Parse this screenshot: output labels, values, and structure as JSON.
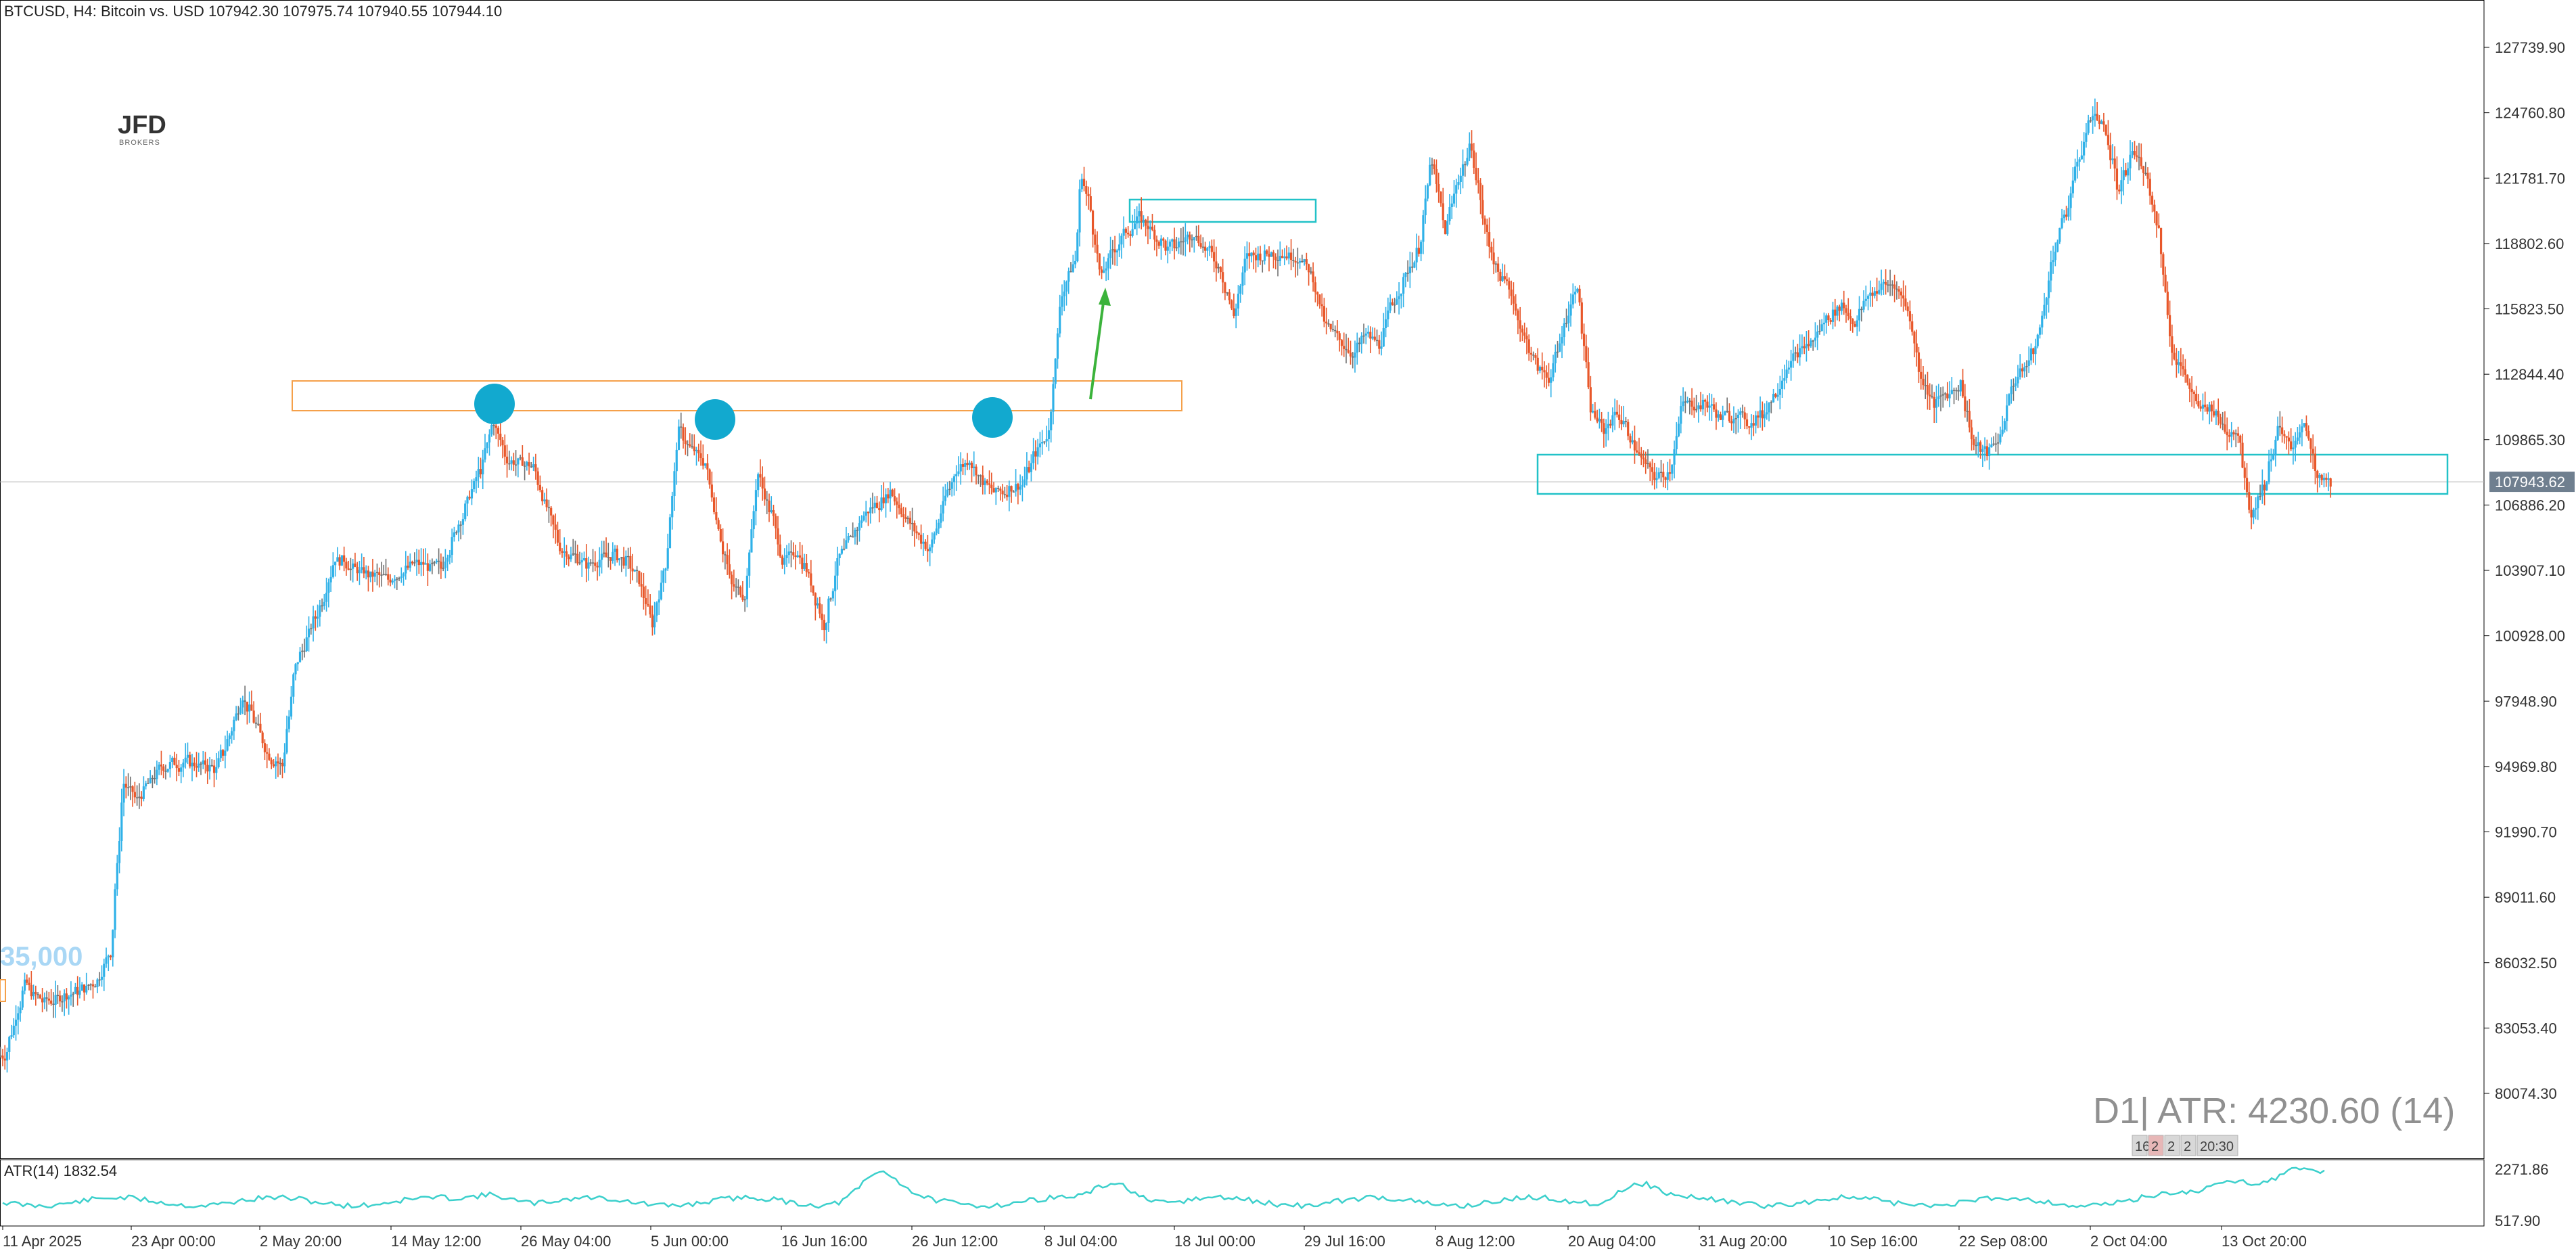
{
  "header": {
    "symbol": "BTCUSD",
    "timeframe": "H4",
    "description": "Bitcoin vs. USD",
    "ohlc": "107942.30 107975.74 107940.55 107944.10",
    "text": "BTCUSD, H4:  Bitcoin vs. USD  107942.30 107975.74 107940.55 107944.10"
  },
  "logo": {
    "main": "JFD",
    "sub": "BROKERS"
  },
  "overlay_label": "35,000",
  "atr_box": {
    "text": "D1| ATR: 4230.60 (14)",
    "mini_tabs": [
      "16",
      "2",
      "2",
      "2",
      "20:30"
    ]
  },
  "indicator": {
    "label": "ATR(14) 1832.54",
    "y_ticks": [
      "2271.86",
      "517.90"
    ]
  },
  "colors": {
    "bull": "#2fb1e8",
    "bear": "#e8572a",
    "doji": "#707070",
    "resistance_zone": "#f5a04a",
    "support_zone": "#22c2c8",
    "marker": "#12a9cf",
    "arrow": "#3bb33b",
    "atr_line": "#3cd0cc",
    "axis_text": "#333333",
    "price_badge": "#6f7f8f",
    "grid": "#d9d9d9"
  },
  "chart_data": {
    "type": "candlestick",
    "title": "BTCUSD, H4: Bitcoin vs. USD",
    "ylim": [
      77000,
      130000
    ],
    "y_ticks": [
      127739.9,
      124760.8,
      121781.7,
      118802.6,
      115823.5,
      112844.4,
      109865.3,
      106886.2,
      103907.1,
      100928.0,
      97948.9,
      94969.8,
      91990.7,
      89011.6,
      86032.5,
      83053.4,
      80074.3
    ],
    "y_tick_labels": [
      "127739.90",
      "124760.80",
      "121781.70",
      "118802.60",
      "115823.50",
      "112844.40",
      "109865.30",
      "106886.20",
      "103907.10",
      "100928.00",
      "97948.90",
      "94969.80",
      "91990.70",
      "89011.60",
      "86032.50",
      "83053.40",
      "80074.30"
    ],
    "x_tick_labels": [
      "11 Apr 2025",
      "23 Apr 00:00",
      "2 May 20:00",
      "14 May 12:00",
      "26 May 04:00",
      "5 Jun 00:00",
      "16 Jun 16:00",
      "26 Jun 12:00",
      "8 Jul 04:00",
      "18 Jul 00:00",
      "29 Jul 16:00",
      "8 Aug 12:00",
      "20 Aug 04:00",
      "31 Aug 20:00",
      "10 Sep 16:00",
      "22 Sep 08:00",
      "2 Oct 04:00",
      "13 Oct 20:00"
    ],
    "current_price": 107943.62,
    "current_price_label": "107943.62",
    "price_path": [
      [
        0,
        81800
      ],
      [
        3,
        85000
      ],
      [
        6,
        84200
      ],
      [
        10,
        84600
      ],
      [
        14,
        85200
      ],
      [
        16,
        86500
      ],
      [
        18,
        94200
      ],
      [
        20,
        93400
      ],
      [
        24,
        95000
      ],
      [
        28,
        95200
      ],
      [
        32,
        94800
      ],
      [
        34,
        96400
      ],
      [
        36,
        98200
      ],
      [
        40,
        95500
      ],
      [
        42,
        95000
      ],
      [
        44,
        99500
      ],
      [
        48,
        102500
      ],
      [
        50,
        104500
      ],
      [
        54,
        103800
      ],
      [
        58,
        103500
      ],
      [
        62,
        104200
      ],
      [
        66,
        104000
      ],
      [
        70,
        107000
      ],
      [
        72,
        108500
      ],
      [
        74,
        110700
      ],
      [
        76,
        109000
      ],
      [
        80,
        108600
      ],
      [
        84,
        105000
      ],
      [
        88,
        104200
      ],
      [
        92,
        104600
      ],
      [
        94,
        104300
      ],
      [
        96,
        103500
      ],
      [
        98,
        101500
      ],
      [
        100,
        104200
      ],
      [
        102,
        110200
      ],
      [
        104,
        109400
      ],
      [
        106,
        108800
      ],
      [
        110,
        103200
      ],
      [
        112,
        102800
      ],
      [
        114,
        108300
      ],
      [
        116,
        106500
      ],
      [
        118,
        104200
      ],
      [
        120,
        104800
      ],
      [
        122,
        103400
      ],
      [
        124,
        101400
      ],
      [
        126,
        104200
      ],
      [
        130,
        106400
      ],
      [
        134,
        107500
      ],
      [
        138,
        105600
      ],
      [
        140,
        104800
      ],
      [
        142,
        106800
      ],
      [
        144,
        108500
      ],
      [
        146,
        109000
      ],
      [
        148,
        108000
      ],
      [
        150,
        107400
      ],
      [
        154,
        107800
      ],
      [
        156,
        109300
      ],
      [
        158,
        110200
      ],
      [
        160,
        116600
      ],
      [
        162,
        118000
      ],
      [
        163,
        122000
      ],
      [
        164,
        120800
      ],
      [
        166,
        117200
      ],
      [
        168,
        118600
      ],
      [
        170,
        119400
      ],
      [
        172,
        120000
      ],
      [
        176,
        118500
      ],
      [
        180,
        119300
      ],
      [
        184,
        117700
      ],
      [
        186,
        115500
      ],
      [
        188,
        118200
      ],
      [
        192,
        118400
      ],
      [
        196,
        118200
      ],
      [
        198,
        117300
      ],
      [
        200,
        115000
      ],
      [
        204,
        113800
      ],
      [
        206,
        114600
      ],
      [
        208,
        114200
      ],
      [
        210,
        116000
      ],
      [
        212,
        117300
      ],
      [
        214,
        118600
      ],
      [
        216,
        122600
      ],
      [
        218,
        119400
      ],
      [
        220,
        121800
      ],
      [
        222,
        123300
      ],
      [
        224,
        119500
      ],
      [
        226,
        117500
      ],
      [
        228,
        116600
      ],
      [
        230,
        114500
      ],
      [
        232,
        113200
      ],
      [
        234,
        112700
      ],
      [
        236,
        115000
      ],
      [
        238,
        117000
      ],
      [
        240,
        111300
      ],
      [
        242,
        110300
      ],
      [
        244,
        111200
      ],
      [
        246,
        110000
      ],
      [
        248,
        108800
      ],
      [
        250,
        108100
      ],
      [
        252,
        108500
      ],
      [
        254,
        111500
      ],
      [
        258,
        111400
      ],
      [
        260,
        110800
      ],
      [
        262,
        111100
      ],
      [
        264,
        110600
      ],
      [
        266,
        111000
      ],
      [
        268,
        112000
      ],
      [
        270,
        113400
      ],
      [
        274,
        114500
      ],
      [
        276,
        115500
      ],
      [
        278,
        116000
      ],
      [
        280,
        115200
      ],
      [
        282,
        116400
      ],
      [
        284,
        116800
      ],
      [
        286,
        117000
      ],
      [
        288,
        115900
      ],
      [
        290,
        112800
      ],
      [
        292,
        111500
      ],
      [
        294,
        112000
      ],
      [
        296,
        112400
      ],
      [
        298,
        109600
      ],
      [
        300,
        109300
      ],
      [
        302,
        110000
      ],
      [
        304,
        112500
      ],
      [
        306,
        113200
      ],
      [
        308,
        114800
      ],
      [
        310,
        118300
      ],
      [
        312,
        120200
      ],
      [
        314,
        122800
      ],
      [
        316,
        124800
      ],
      [
        318,
        124000
      ],
      [
        320,
        121000
      ],
      [
        322,
        123000
      ],
      [
        324,
        122200
      ],
      [
        326,
        119400
      ],
      [
        328,
        114000
      ],
      [
        330,
        112800
      ],
      [
        332,
        111200
      ],
      [
        334,
        111400
      ],
      [
        336,
        110400
      ],
      [
        338,
        110200
      ],
      [
        340,
        106500
      ],
      [
        342,
        107800
      ],
      [
        344,
        110300
      ],
      [
        346,
        109400
      ],
      [
        348,
        110800
      ],
      [
        350,
        108000
      ],
      [
        352,
        107900
      ]
    ]
  }
}
